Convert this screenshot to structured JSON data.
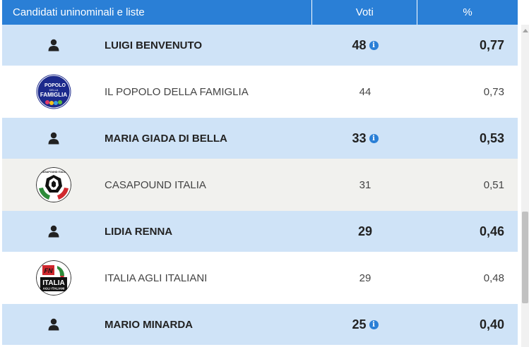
{
  "header": {
    "col_candidates": "Candidati uninominali e liste",
    "col_votes": "Voti",
    "col_pct": "%"
  },
  "rows": [
    {
      "type": "candidate",
      "name": "LUIGI BENVENUTO",
      "votes": "48",
      "pct": "0,77",
      "info": true,
      "icon": "person-icon"
    },
    {
      "type": "list",
      "name": "IL POPOLO DELLA FAMIGLIA",
      "votes": "44",
      "pct": "0,73",
      "logo": "popolo-della-famiglia-logo",
      "logo_text": [
        "POPOLO",
        "DELLA",
        "FAMIGLIA"
      ]
    },
    {
      "type": "candidate",
      "name": "MARIA GIADA DI BELLA",
      "votes": "33",
      "pct": "0,53",
      "info": true,
      "icon": "person-icon"
    },
    {
      "type": "list",
      "name": "CASAPOUND ITALIA",
      "votes": "31",
      "pct": "0,51",
      "logo": "casapound-logo",
      "logo_text": [
        "CASAPOUND ITALIA"
      ]
    },
    {
      "type": "candidate",
      "name": "LIDIA RENNA",
      "votes": "29",
      "pct": "0,46",
      "info": false,
      "icon": "person-icon"
    },
    {
      "type": "list",
      "name": "ITALIA AGLI ITALIANI",
      "votes": "29",
      "pct": "0,48",
      "logo": "italia-agli-italiani-logo",
      "logo_text": [
        "FN",
        "ITALIA",
        "AGLI ITALIANI"
      ]
    },
    {
      "type": "candidate",
      "name": "MARIO MINARDA",
      "votes": "25",
      "pct": "0,40",
      "info": true,
      "icon": "person-icon"
    }
  ],
  "info_glyph": "i",
  "colors": {
    "header_bg": "#2a7fd6",
    "candidate_row_bg": "#cfe3f7",
    "list_row_bg": "#ffffff",
    "list_row_alt_bg": "#f1f1ee",
    "info_icon": "#2a7fd6"
  }
}
